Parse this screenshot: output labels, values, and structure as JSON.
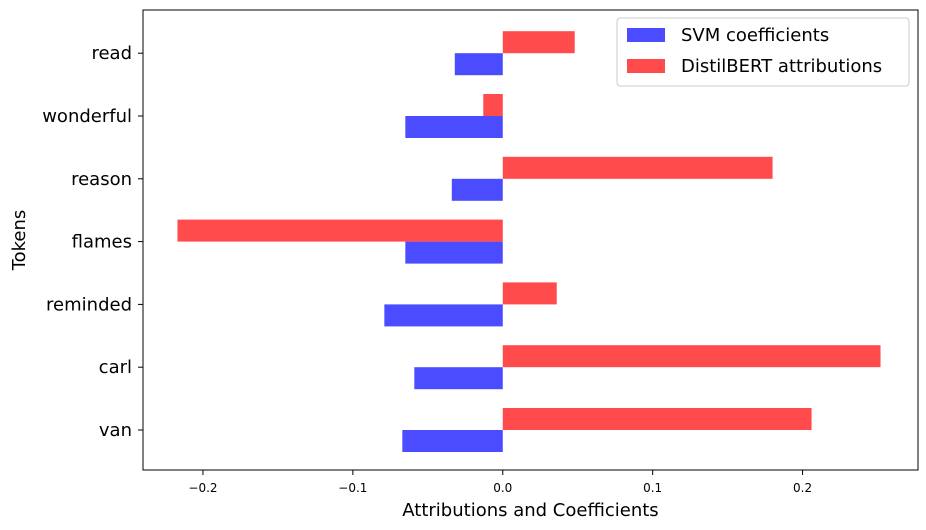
{
  "chart_data": {
    "type": "bar",
    "orientation": "horizontal",
    "xlabel": "Attributions and Coefficients",
    "ylabel": "Tokens",
    "categories": [
      "van",
      "carl",
      "reminded",
      "flames",
      "reason",
      "wonderful",
      "read"
    ],
    "series": [
      {
        "name": "SVM coefficients",
        "color": "#4b4bff",
        "values": [
          -0.067,
          -0.059,
          -0.079,
          -0.065,
          -0.034,
          -0.065,
          -0.032
        ]
      },
      {
        "name": "DistilBERT attributions",
        "color": "#ff4b4b",
        "values": [
          0.206,
          0.252,
          0.036,
          -0.217,
          0.18,
          -0.013,
          0.048
        ]
      }
    ],
    "xlim": [
      -0.24,
      0.277
    ],
    "xticks": [
      {
        "value": -0.2,
        "label": "−0.2"
      },
      {
        "value": -0.1,
        "label": "−0.1"
      },
      {
        "value": 0.0,
        "label": "0.0"
      },
      {
        "value": 0.1,
        "label": "0.1"
      },
      {
        "value": 0.2,
        "label": "0.2"
      }
    ],
    "grid": false,
    "legend_position": "top-right"
  }
}
